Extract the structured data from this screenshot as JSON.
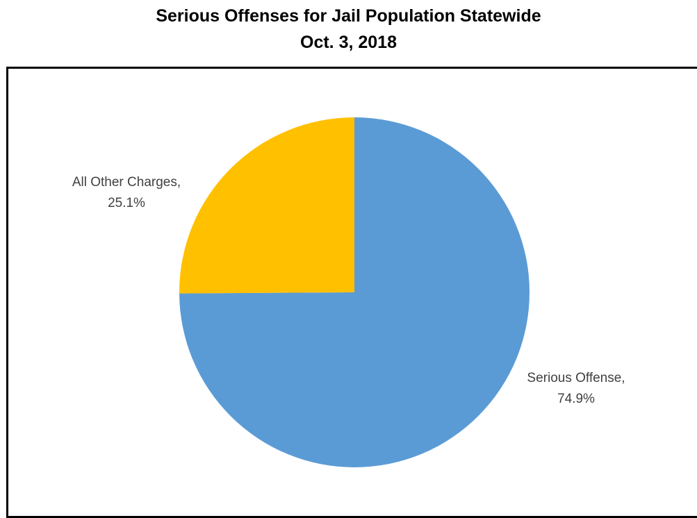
{
  "chart_data": {
    "type": "pie",
    "title": "Serious Offenses for Jail Population Statewide",
    "subtitle": "Oct. 3, 2018",
    "slices": [
      {
        "name": "Serious Offense",
        "value": 74.9,
        "color": "#5B9BD5",
        "label_line1": "Serious Offense,",
        "label_line2": "74.9%"
      },
      {
        "name": "All Other Charges",
        "value": 25.1,
        "color": "#FFC000",
        "label_line1": "All Other Charges,",
        "label_line2": "25.1%"
      }
    ],
    "legend": "none",
    "data_labels": "outside"
  }
}
